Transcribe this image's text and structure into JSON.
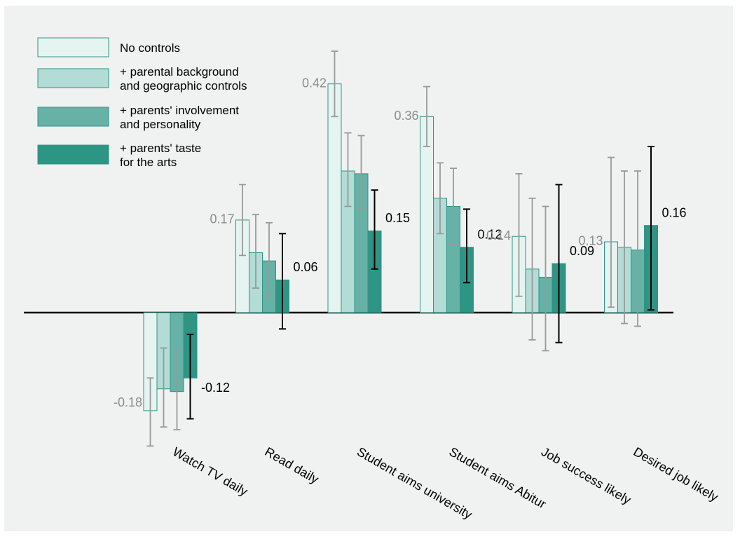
{
  "chart_data": {
    "type": "bar",
    "categories": [
      "Watch TV daily",
      "Read daily",
      "Student aims university",
      "Student aims Abitur",
      "Job success likely",
      "Desired job likely"
    ],
    "series": [
      {
        "name": "No controls",
        "values": [
          -0.18,
          0.17,
          0.42,
          0.36,
          0.14,
          0.13
        ],
        "ci_low": [
          -0.245,
          0.105,
          0.36,
          0.305,
          0.03,
          0.01
        ],
        "ci_high": [
          -0.12,
          0.235,
          0.48,
          0.415,
          0.255,
          0.285
        ]
      },
      {
        "name": "+ parental background\nand geographic controls",
        "values": [
          -0.14,
          0.11,
          0.26,
          0.21,
          0.08,
          0.12
        ],
        "ci_low": [
          -0.21,
          0.045,
          0.195,
          0.145,
          -0.05,
          -0.02
        ],
        "ci_high": [
          -0.065,
          0.18,
          0.33,
          0.275,
          0.21,
          0.26
        ]
      },
      {
        "name": "+ parents' involvement\nand personality",
        "values": [
          -0.145,
          0.095,
          0.255,
          0.195,
          0.065,
          0.115
        ],
        "ci_low": [
          -0.215,
          0.03,
          0.19,
          0.125,
          -0.07,
          -0.025
        ],
        "ci_high": [
          -0.07,
          0.165,
          0.325,
          0.265,
          0.195,
          0.26
        ]
      },
      {
        "name": "+ parents' taste\nfor the arts",
        "values": [
          -0.12,
          0.06,
          0.15,
          0.12,
          0.09,
          0.16
        ],
        "ci_low": [
          -0.195,
          -0.03,
          0.08,
          0.055,
          -0.055,
          0.005
        ],
        "ci_high": [
          -0.04,
          0.145,
          0.225,
          0.19,
          0.235,
          0.305
        ]
      }
    ],
    "value_labels": {
      "first_series": [
        "-0.18",
        "0.17",
        "0.42",
        "0.36",
        "0.14",
        "0.13"
      ],
      "last_series": [
        "-0.12",
        "0.06",
        "0.15",
        "0.12",
        "0.09",
        "0.16"
      ]
    },
    "ylim": [
      -0.26,
      0.55
    ],
    "grid": false,
    "legend_position": "top-left",
    "title": "",
    "xlabel": "",
    "ylabel": ""
  },
  "colors": {
    "background": "#f0f1f1",
    "fills": [
      "#e6f4f1",
      "#b3dcd6",
      "#66b2a6",
      "#2d9584"
    ],
    "bar_border": "#2d9584",
    "error_bar_grey": "#999999",
    "error_bar_highlight": "#000000",
    "label_grey": "#8c8c8c",
    "label_dark": "#000000",
    "axis": "#000000"
  }
}
